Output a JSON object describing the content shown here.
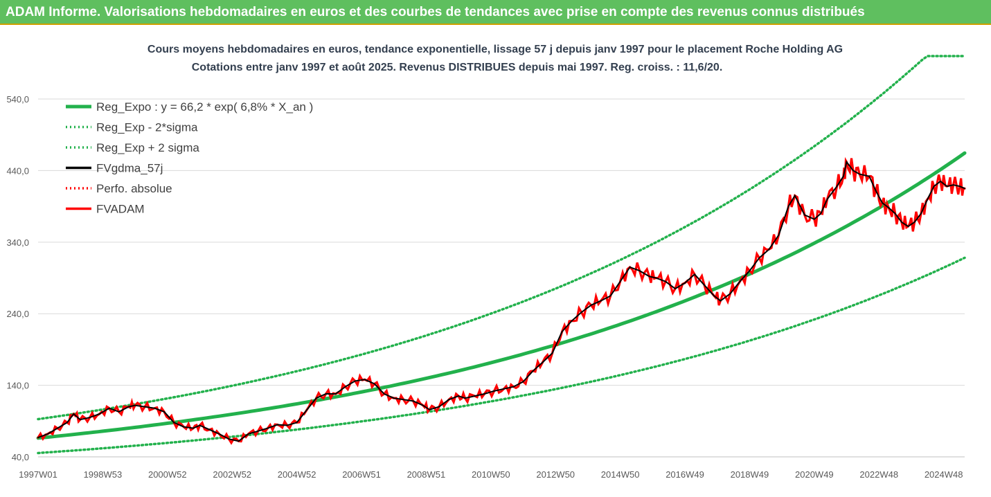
{
  "header": {
    "banner_text": "ADAM Informe. Valorisations hebdomadaires en euros et des courbes de tendances avec prise en compte des revenus connus distribués",
    "banner_color": "#5fbf5f"
  },
  "chart_data": {
    "type": "line",
    "title": "Cours moyens hebdomadaires en euros, tendance exponentielle, lissage 57 j depuis janv 1997 pour le placement Roche Holding AG",
    "subtitle": "Cotations entre janv 1997 et août 2025.  Revenus DISTRIBUES depuis mai 1997. Reg. croiss. : 11,6/20.",
    "xlabel": "",
    "ylabel": "",
    "x_range": [
      1997.0,
      2025.65
    ],
    "ylim": [
      40,
      600
    ],
    "y_ticks": [
      40,
      140,
      240,
      340,
      440,
      540
    ],
    "y_tick_labels": [
      "40,0",
      "140,0",
      "240,0",
      "340,0",
      "440,0",
      "540,0"
    ],
    "x_ticks": [
      {
        "x": 1997.0,
        "label": "1997W01"
      },
      {
        "x": 1999.0,
        "label": "1998W53"
      },
      {
        "x": 2001.0,
        "label": "2000W52"
      },
      {
        "x": 2003.0,
        "label": "2002W52"
      },
      {
        "x": 2005.0,
        "label": "2004W52"
      },
      {
        "x": 2007.0,
        "label": "2006W51"
      },
      {
        "x": 2009.0,
        "label": "2008W51"
      },
      {
        "x": 2011.0,
        "label": "2010W50"
      },
      {
        "x": 2013.0,
        "label": "2012W50"
      },
      {
        "x": 2015.0,
        "label": "2014W50"
      },
      {
        "x": 2017.0,
        "label": "2016W49"
      },
      {
        "x": 2019.0,
        "label": "2018W49"
      },
      {
        "x": 2021.0,
        "label": "2020W49"
      },
      {
        "x": 2023.0,
        "label": "2022W48"
      },
      {
        "x": 2025.0,
        "label": "2024W48"
      }
    ],
    "grid": "horizontal",
    "legend_position": "top-left",
    "series": [
      {
        "name": "Reg_Expo : y = 66,2 * exp( 6,8% *  X_an )",
        "color": "#22b14c",
        "style": "solid",
        "kind": "exp",
        "a": 66.2,
        "rate": 0.068,
        "factor": 1.0
      },
      {
        "name": "Reg_Exp - 2*sigma",
        "color": "#22b14c",
        "style": "dotted",
        "kind": "exp",
        "a": 66.2,
        "rate": 0.068,
        "factor": 0.685
      },
      {
        "name": "Reg_Exp + 2 sigma",
        "color": "#22b14c",
        "style": "dotted",
        "kind": "exp",
        "a": 66.2,
        "rate": 0.068,
        "factor": 1.4,
        "cap": 600
      },
      {
        "name": "FVgdma_57j",
        "color": "#000000",
        "style": "solid",
        "kind": "data"
      },
      {
        "name": "Perfo. absolue",
        "color": "#ff0000",
        "style": "dotted",
        "kind": "none"
      },
      {
        "name": "FVADAM",
        "color": "#ff0000",
        "style": "solid",
        "kind": "data"
      }
    ],
    "price_points": [
      [
        1997.0,
        67
      ],
      [
        1997.3,
        72
      ],
      [
        1997.6,
        80
      ],
      [
        1997.9,
        88
      ],
      [
        1998.1,
        100
      ],
      [
        1998.3,
        92
      ],
      [
        1998.6,
        95
      ],
      [
        1998.9,
        100
      ],
      [
        1999.2,
        108
      ],
      [
        1999.5,
        103
      ],
      [
        1999.8,
        110
      ],
      [
        2000.0,
        112
      ],
      [
        2000.3,
        110
      ],
      [
        2000.6,
        108
      ],
      [
        2000.9,
        103
      ],
      [
        2001.2,
        88
      ],
      [
        2001.5,
        82
      ],
      [
        2001.8,
        80
      ],
      [
        2002.0,
        84
      ],
      [
        2002.3,
        78
      ],
      [
        2002.6,
        72
      ],
      [
        2002.9,
        65
      ],
      [
        2003.2,
        62
      ],
      [
        2003.5,
        72
      ],
      [
        2003.8,
        76
      ],
      [
        2004.1,
        80
      ],
      [
        2004.4,
        85
      ],
      [
        2004.7,
        84
      ],
      [
        2005.0,
        88
      ],
      [
        2005.3,
        105
      ],
      [
        2005.6,
        122
      ],
      [
        2005.9,
        128
      ],
      [
        2006.2,
        128
      ],
      [
        2006.5,
        138
      ],
      [
        2006.8,
        146
      ],
      [
        2007.1,
        148
      ],
      [
        2007.4,
        142
      ],
      [
        2007.7,
        128
      ],
      [
        2008.0,
        122
      ],
      [
        2008.3,
        120
      ],
      [
        2008.6,
        118
      ],
      [
        2008.9,
        112
      ],
      [
        2009.1,
        106
      ],
      [
        2009.4,
        110
      ],
      [
        2009.7,
        120
      ],
      [
        2010.0,
        125
      ],
      [
        2010.2,
        122
      ],
      [
        2010.5,
        125
      ],
      [
        2010.8,
        128
      ],
      [
        2011.1,
        132
      ],
      [
        2011.4,
        135
      ],
      [
        2011.7,
        138
      ],
      [
        2012.0,
        145
      ],
      [
        2012.3,
        160
      ],
      [
        2012.6,
        172
      ],
      [
        2012.9,
        185
      ],
      [
        2013.2,
        215
      ],
      [
        2013.5,
        230
      ],
      [
        2013.8,
        242
      ],
      [
        2014.1,
        252
      ],
      [
        2014.4,
        258
      ],
      [
        2014.7,
        265
      ],
      [
        2015.0,
        285
      ],
      [
        2015.3,
        305
      ],
      [
        2015.6,
        300
      ],
      [
        2015.9,
        292
      ],
      [
        2016.1,
        290
      ],
      [
        2016.4,
        285
      ],
      [
        2016.7,
        275
      ],
      [
        2017.0,
        283
      ],
      [
        2017.3,
        295
      ],
      [
        2017.6,
        280
      ],
      [
        2017.9,
        265
      ],
      [
        2018.1,
        258
      ],
      [
        2018.4,
        268
      ],
      [
        2018.7,
        285
      ],
      [
        2019.0,
        300
      ],
      [
        2019.3,
        318
      ],
      [
        2019.6,
        330
      ],
      [
        2019.9,
        350
      ],
      [
        2020.2,
        390
      ],
      [
        2020.4,
        405
      ],
      [
        2020.7,
        378
      ],
      [
        2021.0,
        372
      ],
      [
        2021.2,
        380
      ],
      [
        2021.4,
        400
      ],
      [
        2021.7,
        418
      ],
      [
        2021.9,
        432
      ],
      [
        2022.0,
        452
      ],
      [
        2022.2,
        440
      ],
      [
        2022.4,
        435
      ],
      [
        2022.7,
        432
      ],
      [
        2022.9,
        412
      ],
      [
        2023.1,
        395
      ],
      [
        2023.3,
        388
      ],
      [
        2023.5,
        380
      ],
      [
        2023.7,
        368
      ],
      [
        2023.9,
        362
      ],
      [
        2024.1,
        368
      ],
      [
        2024.3,
        380
      ],
      [
        2024.5,
        400
      ],
      [
        2024.7,
        418
      ],
      [
        2024.9,
        425
      ],
      [
        2025.1,
        418
      ],
      [
        2025.3,
        420
      ],
      [
        2025.5,
        418
      ],
      [
        2025.65,
        415
      ]
    ]
  }
}
